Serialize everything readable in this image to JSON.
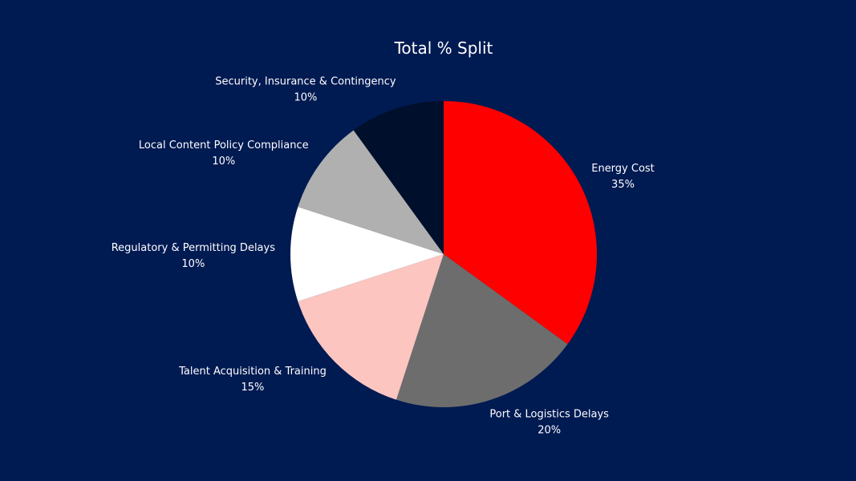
{
  "chart_data": {
    "type": "pie",
    "title": "Total % Split",
    "start": "top, clockwise",
    "slices": [
      {
        "label": "Energy Cost",
        "value": 35,
        "display": "35%",
        "color": "#ff0000"
      },
      {
        "label": "Port & Logistics Delays",
        "value": 20,
        "display": "20%",
        "color": "#6d6d6d"
      },
      {
        "label": "Talent Acquisition & Training",
        "value": 15,
        "display": "15%",
        "color": "#fcc5c0"
      },
      {
        "label": "Regulatory & Permitting Delays",
        "value": 10,
        "display": "10%",
        "color": "#ffffff"
      },
      {
        "label": "Local Content Policy Compliance",
        "value": 10,
        "display": "10%",
        "color": "#b0b0b0"
      },
      {
        "label": "Security, Insurance & Contingency",
        "value": 10,
        "display": "10%",
        "color": "#000f2b"
      }
    ],
    "background": "#001a52"
  }
}
